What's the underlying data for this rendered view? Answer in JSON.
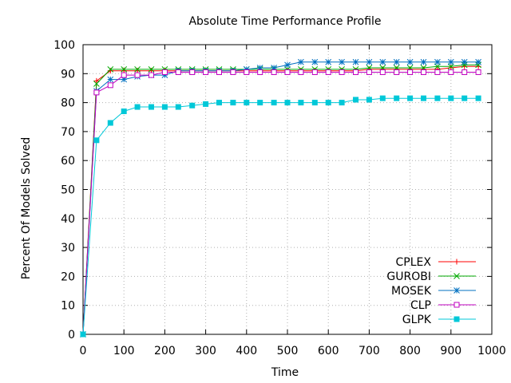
{
  "chart_data": {
    "type": "line",
    "title": "Absolute Time Performance Profile",
    "xlabel": "Time",
    "ylabel": "Percent Of Models Solved",
    "xlim": [
      0,
      1000
    ],
    "ylim": [
      0,
      100
    ],
    "xticks": [
      0,
      100,
      200,
      300,
      400,
      500,
      600,
      700,
      800,
      900,
      1000
    ],
    "yticks": [
      0,
      10,
      20,
      30,
      40,
      50,
      60,
      70,
      80,
      90,
      100
    ],
    "grid": true,
    "legend_position": "bottom-right",
    "series": [
      {
        "name": "CPLEX",
        "color": "#ff0000",
        "marker": "plus",
        "x": [
          0,
          33,
          67,
          100,
          133,
          167,
          200,
          233,
          267,
          300,
          333,
          367,
          400,
          433,
          467,
          500,
          533,
          567,
          600,
          633,
          667,
          700,
          733,
          767,
          800,
          833,
          867,
          900,
          933,
          967
        ],
        "y": [
          0,
          87.5,
          91,
          91,
          91,
          91,
          91,
          91,
          91,
          91,
          91,
          91,
          91,
          91,
          91,
          91,
          91,
          91,
          91,
          91,
          91,
          91.5,
          91.5,
          91.5,
          91.5,
          91.5,
          91.5,
          92,
          92.5,
          92.5
        ]
      },
      {
        "name": "GUROBI",
        "color": "#00aa00",
        "marker": "x",
        "x": [
          0,
          33,
          67,
          100,
          133,
          167,
          200,
          233,
          267,
          300,
          333,
          367,
          400,
          433,
          467,
          500,
          533,
          567,
          600,
          633,
          667,
          700,
          733,
          767,
          800,
          833,
          867,
          900,
          933,
          967
        ],
        "y": [
          0,
          86.5,
          91.5,
          91.5,
          91.5,
          91.5,
          91.5,
          91.5,
          91.5,
          91.5,
          91.5,
          91.5,
          91.5,
          91.5,
          91.5,
          91.5,
          91.5,
          91.5,
          91.5,
          91.5,
          91.5,
          92,
          92,
          92,
          92,
          92,
          92.5,
          92.5,
          93,
          93
        ]
      },
      {
        "name": "MOSEK",
        "color": "#0070c0",
        "marker": "star",
        "x": [
          0,
          33,
          67,
          100,
          133,
          167,
          200,
          233,
          267,
          300,
          333,
          367,
          400,
          433,
          467,
          500,
          533,
          567,
          600,
          633,
          667,
          700,
          733,
          767,
          800,
          833,
          867,
          900,
          933,
          967
        ],
        "y": [
          0,
          84,
          88,
          88,
          89,
          89.5,
          89.5,
          91,
          91,
          91,
          91,
          91,
          91.5,
          92,
          92,
          93,
          94,
          94,
          94,
          94,
          94,
          94,
          94,
          94,
          94,
          94,
          94,
          94,
          94,
          94
        ]
      },
      {
        "name": "CLP",
        "color": "#c000c0",
        "marker": "square",
        "x": [
          0,
          33,
          67,
          100,
          133,
          167,
          200,
          233,
          267,
          300,
          333,
          367,
          400,
          433,
          467,
          500,
          533,
          567,
          600,
          633,
          667,
          700,
          733,
          767,
          800,
          833,
          867,
          900,
          933,
          967
        ],
        "y": [
          0,
          83.5,
          86,
          89.5,
          89.5,
          89.5,
          90.5,
          90.5,
          90.5,
          90.5,
          90.5,
          90.5,
          90.5,
          90.5,
          90.5,
          90.5,
          90.5,
          90.5,
          90.5,
          90.5,
          90.5,
          90.5,
          90.5,
          90.5,
          90.5,
          90.5,
          90.5,
          90.5,
          90.5,
          90.5
        ]
      },
      {
        "name": "GLPK",
        "color": "#00c8d8",
        "marker": "filled-square",
        "x": [
          0,
          33,
          67,
          100,
          133,
          167,
          200,
          233,
          267,
          300,
          333,
          367,
          400,
          433,
          467,
          500,
          533,
          567,
          600,
          633,
          667,
          700,
          733,
          767,
          800,
          833,
          867,
          900,
          933,
          967
        ],
        "y": [
          0,
          67,
          73,
          77,
          78.5,
          78.5,
          78.5,
          78.5,
          79,
          79.5,
          80,
          80,
          80,
          80,
          80,
          80,
          80,
          80,
          80,
          80,
          81,
          81,
          81.5,
          81.5,
          81.5,
          81.5,
          81.5,
          81.5,
          81.5,
          81.5
        ]
      }
    ]
  }
}
